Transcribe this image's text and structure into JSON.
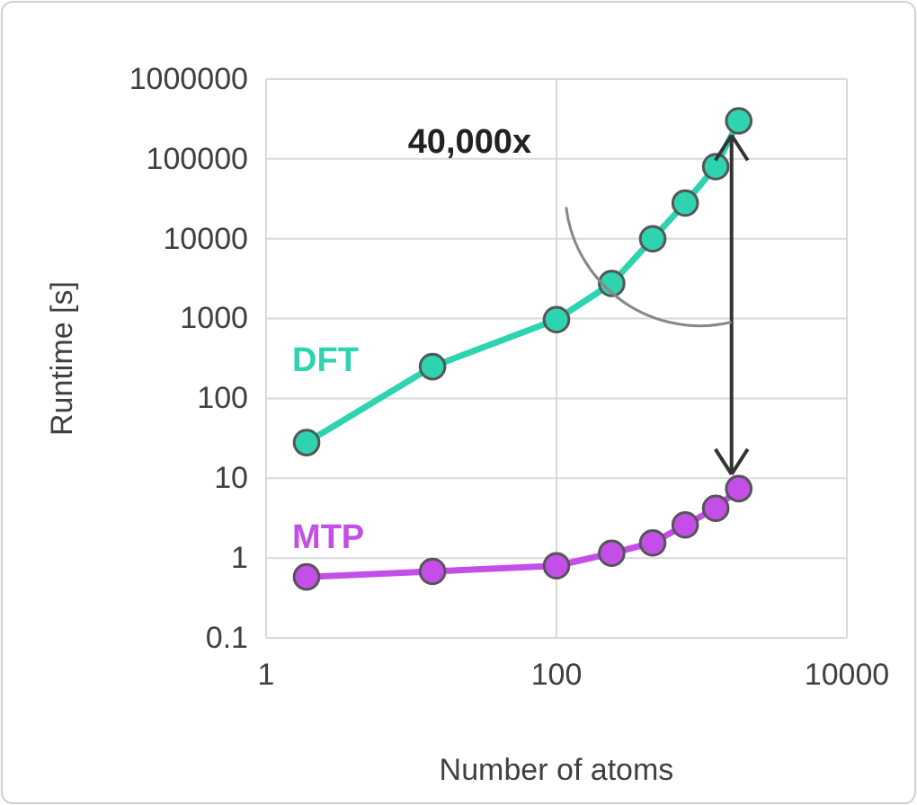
{
  "chart_data": {
    "type": "line",
    "xlabel": "Number of atoms",
    "ylabel": "Runtime [s]",
    "log": "xy",
    "grid": true,
    "marker": "circle",
    "line_style": "solid",
    "xlim": [
      1,
      10000
    ],
    "xticks": [
      1,
      100,
      10000
    ],
    "ylim": [
      0.1,
      1000000
    ],
    "yticks": [
      0.1,
      1,
      10,
      100,
      1000,
      10000,
      100000,
      1000000
    ],
    "x": [
      1.9,
      14,
      100,
      240,
      460,
      770,
      1250,
      1800
    ],
    "series": [
      {
        "name": "DFT",
        "color": "#2ed3b0",
        "values": [
          28,
          250,
          970,
          2750,
          10000,
          28000,
          80000,
          300000
        ]
      },
      {
        "name": "MTP",
        "color": "#c44ee8",
        "values": [
          0.58,
          0.68,
          0.8,
          1.15,
          1.55,
          2.6,
          4.2,
          7.4
        ]
      }
    ],
    "annotations": [
      "40,000x"
    ]
  }
}
